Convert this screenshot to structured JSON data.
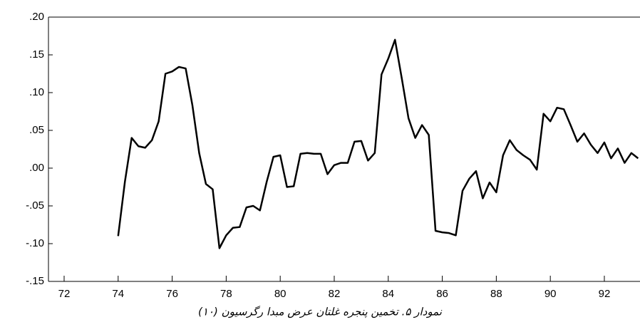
{
  "chart_data": {
    "type": "line",
    "caption": "نمودار ۵. تخمین پنجره غلتان عرض مبدا رگرسیون (۱۰)",
    "x": [
      74,
      74.25,
      74.5,
      74.75,
      75,
      75.25,
      75.5,
      75.75,
      76,
      76.25,
      76.5,
      76.75,
      77,
      77.25,
      77.5,
      77.75,
      78,
      78.25,
      78.5,
      78.75,
      79,
      79.25,
      79.5,
      79.75,
      80,
      80.25,
      80.5,
      80.75,
      81,
      81.25,
      81.5,
      81.75,
      82,
      82.25,
      82.5,
      82.75,
      83,
      83.25,
      83.5,
      83.75,
      84,
      84.25,
      84.5,
      84.75,
      85,
      85.25,
      85.5,
      85.75,
      86,
      86.25,
      86.5,
      86.75,
      87,
      87.25,
      87.5,
      87.75,
      88,
      88.25,
      88.5,
      88.75,
      89,
      89.25,
      89.5,
      89.75,
      90,
      90.25,
      90.5,
      90.75,
      91,
      91.25,
      91.5,
      91.75,
      92,
      92.25,
      92.5,
      92.75,
      93,
      93.25
    ],
    "values": [
      -0.09,
      -0.018,
      0.04,
      0.029,
      0.027,
      0.037,
      0.062,
      0.125,
      0.128,
      0.134,
      0.132,
      0.083,
      0.02,
      -0.021,
      -0.028,
      -0.106,
      -0.089,
      -0.079,
      -0.078,
      -0.052,
      -0.05,
      -0.056,
      -0.018,
      0.015,
      0.017,
      -0.025,
      -0.024,
      0.019,
      0.02,
      0.019,
      0.019,
      -0.008,
      0.004,
      0.007,
      0.007,
      0.035,
      0.036,
      0.01,
      0.02,
      0.124,
      0.145,
      0.17,
      0.119,
      0.066,
      0.04,
      0.057,
      0.044,
      -0.083,
      -0.085,
      -0.086,
      -0.089,
      -0.03,
      -0.014,
      -0.004,
      -0.04,
      -0.019,
      -0.032,
      0.017,
      0.037,
      0.024,
      0.017,
      0.011,
      -0.002,
      0.072,
      0.062,
      0.08,
      0.078,
      0.057,
      0.035,
      0.046,
      0.031,
      0.02,
      0.034,
      0.013,
      0.026,
      0.007,
      0.02,
      0.013
    ],
    "color": "#000000",
    "xlim": [
      71.42,
      93.32
    ],
    "xticks": [
      72,
      74,
      76,
      78,
      80,
      82,
      84,
      86,
      88,
      90,
      92
    ],
    "ylim": [
      -0.15,
      0.2
    ],
    "yticks": [
      {
        "value": -0.15,
        "label": "-.15"
      },
      {
        "value": -0.1,
        "label": "-.10"
      },
      {
        "value": -0.05,
        "label": "-.05"
      },
      {
        "value": 0,
        "label": ".00"
      },
      {
        "value": 0.05,
        "label": ".05"
      },
      {
        "value": 0.1,
        "label": ".10"
      },
      {
        "value": 0.15,
        "label": ".15"
      },
      {
        "value": 0.2,
        "label": ".20"
      }
    ],
    "grid": false
  }
}
